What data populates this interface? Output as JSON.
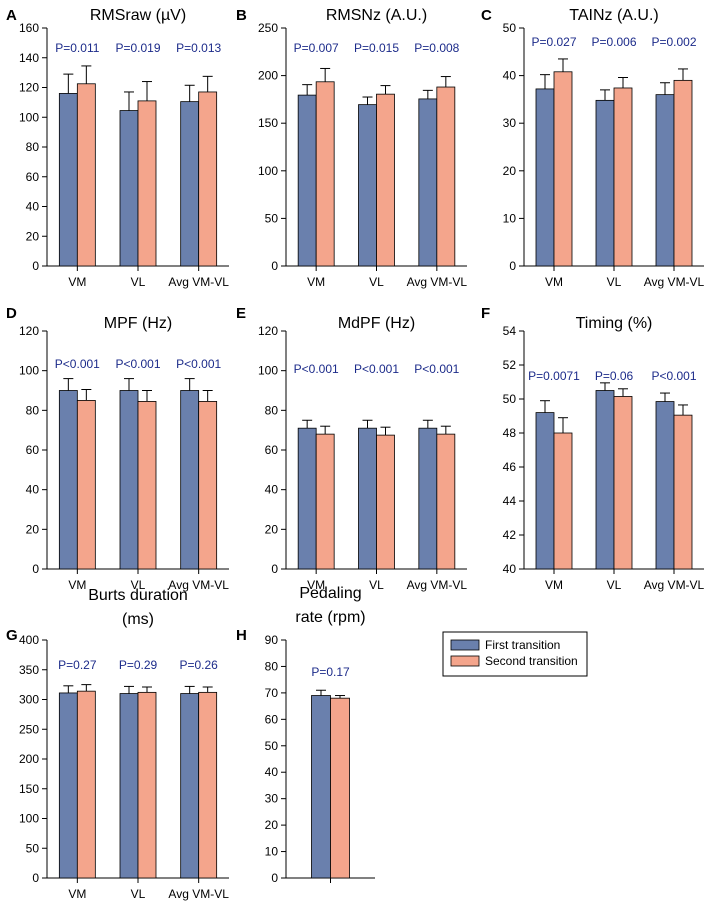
{
  "colors": {
    "first": "#6a80ad",
    "second": "#f4a58c",
    "annotation": "#1c2b8a",
    "axis": "#000000"
  },
  "legend": {
    "entries": [
      "First transition",
      "Second transition"
    ]
  },
  "chart_data": [
    {
      "letter": "A",
      "type": "bar",
      "title": "RMSraw (µV)",
      "categories": [
        "VM",
        "VL",
        "Avg VM-VL"
      ],
      "ylim": [
        0,
        160
      ],
      "yticks": [
        "0",
        "20",
        "40",
        "60",
        "80",
        "100",
        "120",
        "140",
        "160"
      ],
      "series": [
        {
          "name": "First transition",
          "values": [
            116,
            104.5,
            110.5
          ],
          "errors": [
            13,
            12.5,
            11
          ]
        },
        {
          "name": "Second transition",
          "values": [
            122.5,
            111,
            117
          ],
          "errors": [
            12,
            13,
            10.5
          ]
        }
      ],
      "annotations": [
        "P=0.011",
        "P=0.019",
        "P=0.013"
      ]
    },
    {
      "letter": "B",
      "type": "bar",
      "title": "RMSNz (A.U.)",
      "categories": [
        "VM",
        "VL",
        "Avg VM-VL"
      ],
      "ylim": [
        0,
        250
      ],
      "yticks": [
        "0",
        "50",
        "100",
        "150",
        "200",
        "250"
      ],
      "series": [
        {
          "name": "First transition",
          "values": [
            179.5,
            169.5,
            175.5
          ],
          "errors": [
            11,
            8,
            9
          ]
        },
        {
          "name": "Second transition",
          "values": [
            193.5,
            180.5,
            188
          ],
          "errors": [
            14,
            9,
            11
          ]
        }
      ],
      "annotations": [
        "P=0.007",
        "P=0.015",
        "P=0.008"
      ]
    },
    {
      "letter": "C",
      "type": "bar",
      "title": "TAINz (A.U.)",
      "categories": [
        "VM",
        "VL",
        "Avg VM-VL"
      ],
      "ylim": [
        0,
        50
      ],
      "yticks": [
        "0",
        "10",
        "20",
        "30",
        "40",
        "50"
      ],
      "series": [
        {
          "name": "First transition",
          "values": [
            37.2,
            34.8,
            36
          ],
          "errors": [
            3,
            2.2,
            2.5
          ]
        },
        {
          "name": "Second transition",
          "values": [
            40.8,
            37.4,
            39
          ],
          "errors": [
            2.7,
            2.2,
            2.4
          ]
        }
      ],
      "annotations": [
        "P=0.027",
        "P=0.006",
        "P=0.002"
      ]
    },
    {
      "letter": "D",
      "type": "bar",
      "title": "MPF (Hz)",
      "categories": [
        "VM",
        "VL",
        "Avg VM-VL"
      ],
      "ylim": [
        0,
        120
      ],
      "yticks": [
        "0",
        "20",
        "40",
        "60",
        "80",
        "100",
        "120"
      ],
      "series": [
        {
          "name": "First transition",
          "values": [
            90,
            90,
            90
          ],
          "errors": [
            6,
            6,
            6
          ]
        },
        {
          "name": "Second transition",
          "values": [
            85,
            84.5,
            84.5
          ],
          "errors": [
            5.5,
            5.5,
            5.5
          ]
        }
      ],
      "annotations": [
        "P<0.001",
        "P<0.001",
        "P<0.001"
      ]
    },
    {
      "letter": "E",
      "type": "bar",
      "title": "MdPF (Hz)",
      "categories": [
        "VM",
        "VL",
        "Avg VM-VL"
      ],
      "ylim": [
        0,
        120
      ],
      "yticks": [
        "0",
        "20",
        "40",
        "60",
        "80",
        "100",
        "120"
      ],
      "series": [
        {
          "name": "First transition",
          "values": [
            71,
            71,
            71
          ],
          "errors": [
            4,
            4,
            4
          ]
        },
        {
          "name": "Second transition",
          "values": [
            68,
            67.5,
            68
          ],
          "errors": [
            4,
            4,
            4
          ]
        }
      ],
      "annotations": [
        "P<0.001",
        "P<0.001",
        "P<0.001"
      ]
    },
    {
      "letter": "F",
      "type": "bar",
      "title": "Timing (%)",
      "categories": [
        "VM",
        "VL",
        "Avg VM-VL"
      ],
      "ylim": [
        40,
        54
      ],
      "yticks": [
        "40",
        "42",
        "44",
        "46",
        "48",
        "50",
        "52",
        "54"
      ],
      "series": [
        {
          "name": "First transition",
          "values": [
            49.2,
            50.5,
            49.85
          ],
          "errors": [
            0.7,
            0.45,
            0.5
          ]
        },
        {
          "name": "Second transition",
          "values": [
            48,
            50.15,
            49.05
          ],
          "errors": [
            0.9,
            0.45,
            0.6
          ]
        }
      ],
      "annotations": [
        "P=0.0071",
        "P=0.06",
        "P<0.001"
      ]
    },
    {
      "letter": "G",
      "type": "bar",
      "title": [
        "Burts duration",
        "(ms)"
      ],
      "categories": [
        "VM",
        "VL",
        "Avg VM-VL"
      ],
      "ylim": [
        0,
        400
      ],
      "yticks": [
        "0",
        "50",
        "100",
        "150",
        "200",
        "250",
        "300",
        "350",
        "400"
      ],
      "series": [
        {
          "name": "First transition",
          "values": [
            311,
            310,
            310
          ],
          "errors": [
            12,
            12,
            12
          ]
        },
        {
          "name": "Second transition",
          "values": [
            314,
            312,
            312
          ],
          "errors": [
            11,
            9,
            9
          ]
        }
      ],
      "annotations": [
        "P=0.27",
        "P=0.29",
        "P=0.26"
      ]
    },
    {
      "letter": "H",
      "type": "bar",
      "title": [
        "Pedaling",
        "rate (rpm)"
      ],
      "categories": [
        ""
      ],
      "ylim": [
        0,
        90
      ],
      "yticks": [
        "0",
        "10",
        "20",
        "30",
        "40",
        "50",
        "60",
        "70",
        "80",
        "90"
      ],
      "series": [
        {
          "name": "First transition",
          "values": [
            69
          ],
          "errors": [
            2
          ]
        },
        {
          "name": "Second transition",
          "values": [
            68
          ],
          "errors": [
            1
          ]
        }
      ],
      "annotations": [
        "P=0.17"
      ]
    }
  ]
}
